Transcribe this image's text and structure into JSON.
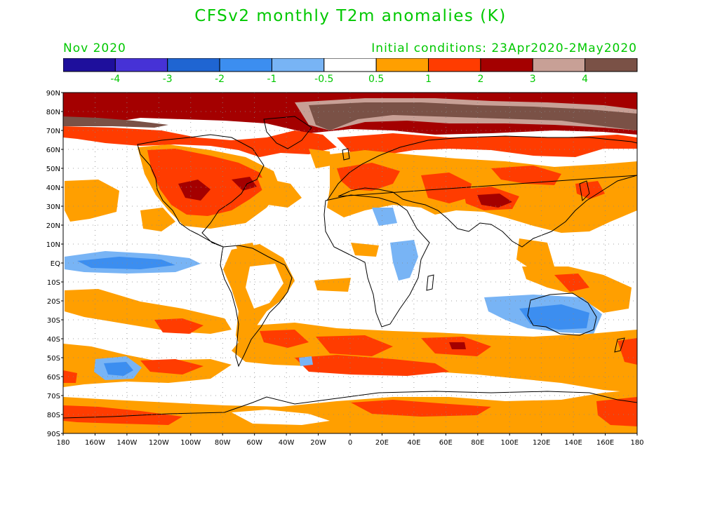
{
  "title": "CFSv2 monthly T2m anomalies (K)",
  "valid_month": "Nov 2020",
  "initial_conditions": "Initial conditions: 23Apr2020-2May2020",
  "colors": {
    "label_green": "#00c800",
    "ocean_land_bg": "#ffffff",
    "coastline": "#000000"
  },
  "colorbar": {
    "bins": [
      {
        "color": "#1e0f9c"
      },
      {
        "color": "#4632d6"
      },
      {
        "color": "#1f65d2"
      },
      {
        "color": "#3c8ef0"
      },
      {
        "color": "#78b4f5"
      },
      {
        "color": "#ffffff"
      },
      {
        "color": "#ff9f00"
      },
      {
        "color": "#ff3c00"
      },
      {
        "color": "#a40000"
      },
      {
        "color": "#c8a096"
      },
      {
        "color": "#7a5146"
      }
    ],
    "labels": [
      "-4",
      "-3",
      "-2",
      "-1",
      "-0.5",
      "0.5",
      "1",
      "2",
      "3",
      "4"
    ]
  },
  "axes": {
    "lat_labels": [
      "90N",
      "80N",
      "70N",
      "60N",
      "50N",
      "40N",
      "30N",
      "20N",
      "10N",
      "EQ",
      "10S",
      "20S",
      "30S",
      "40S",
      "50S",
      "60S",
      "70S",
      "80S",
      "90S"
    ],
    "lon_labels": [
      "180",
      "160W",
      "140W",
      "120W",
      "100W",
      "80W",
      "60W",
      "40W",
      "20W",
      "0",
      "20E",
      "40E",
      "60E",
      "80E",
      "100E",
      "120E",
      "140E",
      "160E",
      "180"
    ]
  }
}
